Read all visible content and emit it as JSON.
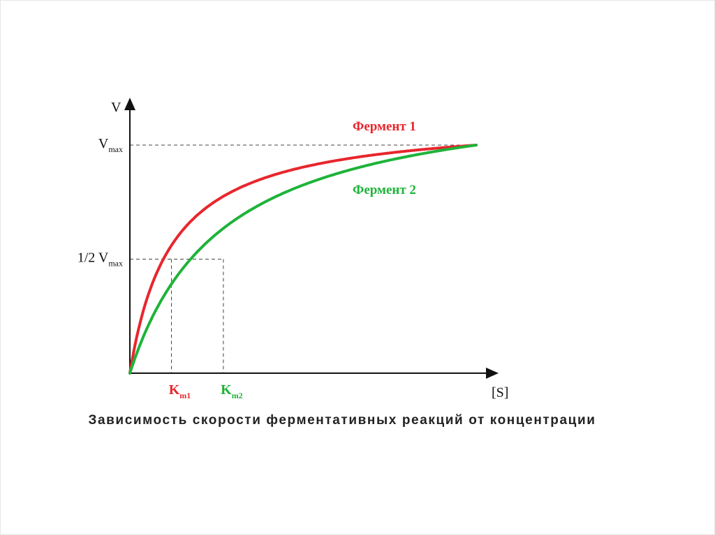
{
  "chart_data": {
    "type": "line",
    "y_axis_label": "V",
    "x_axis_label": "[S]",
    "y_ticks": [
      {
        "main": "V",
        "sub": "max"
      },
      {
        "main": "1/2 V",
        "sub": "max"
      }
    ],
    "x_ticks": [
      {
        "main": "K",
        "sub": "m1",
        "color": "#e8262d"
      },
      {
        "main": "K",
        "sub": "m2",
        "color": "#1fb33a"
      }
    ],
    "vmax": 1,
    "km1": 0.12,
    "km2": 0.27,
    "s_max": 1,
    "series": [
      {
        "name": "Фермент 1",
        "color": "#e8262d",
        "km": 0.12
      },
      {
        "name": "Фермент 2",
        "color": "#1fb33a",
        "km": 0.27
      }
    ],
    "caption": "Зависимость скорости ферментативных реакций от концентрации"
  }
}
